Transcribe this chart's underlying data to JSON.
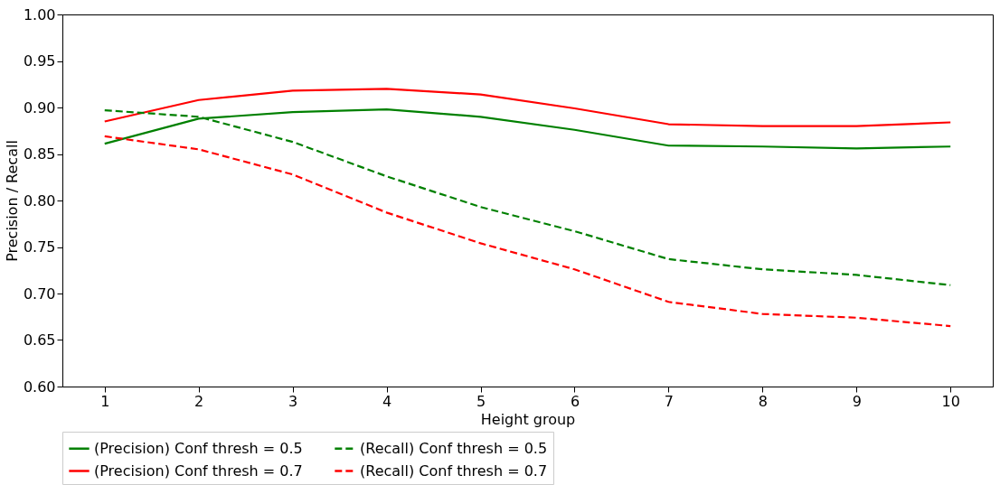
{
  "chart_data": {
    "type": "line",
    "xlabel": "Height group",
    "ylabel": "Precision / Recall",
    "x": [
      1,
      2,
      3,
      4,
      5,
      6,
      7,
      8,
      9,
      10
    ],
    "xlim": [
      0.55,
      10.45
    ],
    "xticks": [
      1,
      2,
      3,
      4,
      5,
      6,
      7,
      8,
      9,
      10
    ],
    "ylim": [
      0.6,
      1.0
    ],
    "yticks": [
      {
        "value": 0.6,
        "label": "0.60"
      },
      0.65,
      {
        "value": 0.7,
        "label": "0.70"
      },
      0.75,
      {
        "value": 0.8,
        "label": "0.80"
      },
      0.85,
      {
        "value": 0.9,
        "label": "0.90"
      },
      0.95,
      {
        "value": 1.0,
        "label": "1.00"
      }
    ],
    "grid": false,
    "legend": "bottom",
    "marker": "none",
    "series": [
      {
        "name": "(Precision) Conf thresh = 0.5",
        "color": "#008000",
        "line_style": "solid",
        "values": [
          0.861,
          0.888,
          0.895,
          0.898,
          0.89,
          0.876,
          0.859,
          0.858,
          0.856,
          0.858
        ]
      },
      {
        "name": "(Precision) Conf thresh = 0.7",
        "color": "#ff0000",
        "line_style": "solid",
        "values": [
          0.885,
          0.908,
          0.918,
          0.92,
          0.914,
          0.899,
          0.882,
          0.88,
          0.88,
          0.884
        ]
      },
      {
        "name": "(Recall) Conf thresh = 0.5",
        "color": "#008000",
        "line_style": "dashed",
        "values": [
          0.897,
          0.89,
          0.863,
          0.826,
          0.793,
          0.767,
          0.737,
          0.726,
          0.72,
          0.709
        ]
      },
      {
        "name": "(Recall) Conf thresh = 0.7",
        "color": "#ff0000",
        "line_style": "dashed",
        "values": [
          0.869,
          0.855,
          0.828,
          0.787,
          0.754,
          0.726,
          0.691,
          0.678,
          0.674,
          0.665
        ]
      }
    ]
  }
}
